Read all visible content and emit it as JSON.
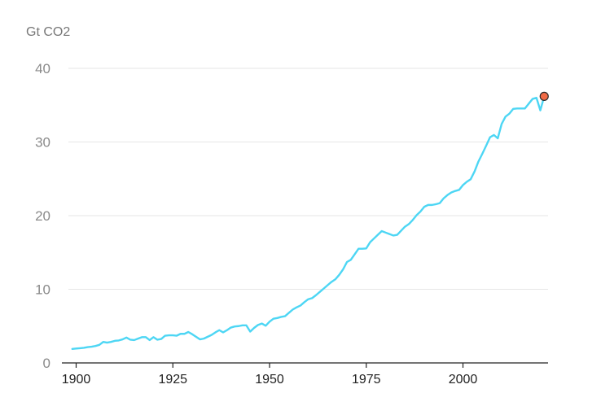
{
  "chart_data": {
    "type": "line",
    "unit_label": "Gt CO2",
    "x_ticks": [
      1900,
      1925,
      1950,
      1975,
      2000
    ],
    "y_ticks": [
      0,
      10,
      20,
      30,
      40
    ],
    "xlim": [
      1898,
      2022
    ],
    "ylim": [
      0,
      40
    ],
    "grid": true,
    "colors": {
      "line": "#4dd6f4",
      "marker_fill": "#f06a45",
      "marker_stroke": "#2a2a2a"
    },
    "series": [
      {
        "x": [
          1899,
          1900,
          1901,
          1902,
          1903,
          1904,
          1905,
          1906,
          1907,
          1908,
          1909,
          1910,
          1911,
          1912,
          1913,
          1914,
          1915,
          1916,
          1917,
          1918,
          1919,
          1920,
          1921,
          1922,
          1923,
          1924,
          1925,
          1926,
          1927,
          1928,
          1929,
          1930,
          1931,
          1932,
          1933,
          1934,
          1935,
          1936,
          1937,
          1938,
          1939,
          1940,
          1941,
          1942,
          1943,
          1944,
          1945,
          1946,
          1947,
          1948,
          1949,
          1950,
          1951,
          1952,
          1953,
          1954,
          1955,
          1956,
          1957,
          1958,
          1959,
          1960,
          1961,
          1962,
          1963,
          1964,
          1965,
          1966,
          1967,
          1968,
          1969,
          1970,
          1971,
          1972,
          1973,
          1974,
          1975,
          1976,
          1977,
          1978,
          1979,
          1980,
          1981,
          1982,
          1983,
          1984,
          1985,
          1986,
          1987,
          1988,
          1989,
          1990,
          1991,
          1992,
          1993,
          1994,
          1995,
          1996,
          1997,
          1998,
          1999,
          2000,
          2001,
          2002,
          2003,
          2004,
          2005,
          2006,
          2007,
          2008,
          2009,
          2010,
          2011,
          2012,
          2013,
          2014,
          2015,
          2016,
          2017,
          2018,
          2019,
          2020,
          2021
        ],
        "y": [
          1.9,
          1.95,
          2.0,
          2.05,
          2.15,
          2.2,
          2.3,
          2.45,
          2.85,
          2.75,
          2.85,
          3.0,
          3.05,
          3.2,
          3.45,
          3.15,
          3.1,
          3.3,
          3.5,
          3.5,
          3.1,
          3.5,
          3.15,
          3.25,
          3.7,
          3.75,
          3.75,
          3.7,
          3.95,
          3.95,
          4.2,
          3.9,
          3.55,
          3.2,
          3.3,
          3.55,
          3.8,
          4.15,
          4.45,
          4.15,
          4.45,
          4.8,
          4.95,
          5.0,
          5.1,
          5.1,
          4.25,
          4.75,
          5.15,
          5.35,
          5.05,
          5.6,
          6.0,
          6.1,
          6.25,
          6.35,
          6.8,
          7.25,
          7.55,
          7.8,
          8.25,
          8.65,
          8.8,
          9.2,
          9.65,
          10.1,
          10.55,
          11.0,
          11.35,
          11.95,
          12.7,
          13.7,
          14.0,
          14.75,
          15.5,
          15.5,
          15.55,
          16.4,
          16.9,
          17.4,
          17.9,
          17.7,
          17.5,
          17.3,
          17.4,
          17.95,
          18.5,
          18.85,
          19.4,
          20.05,
          20.55,
          21.2,
          21.45,
          21.45,
          21.55,
          21.7,
          22.35,
          22.8,
          23.15,
          23.35,
          23.5,
          24.15,
          24.6,
          24.95,
          26.0,
          27.35,
          28.4,
          29.5,
          30.65,
          30.95,
          30.5,
          32.45,
          33.45,
          33.85,
          34.5,
          34.55,
          34.55,
          34.55,
          35.2,
          35.85,
          36.0,
          34.3,
          36.2
        ]
      }
    ],
    "highlight_point": {
      "x": 2021,
      "y": 36.2
    }
  }
}
